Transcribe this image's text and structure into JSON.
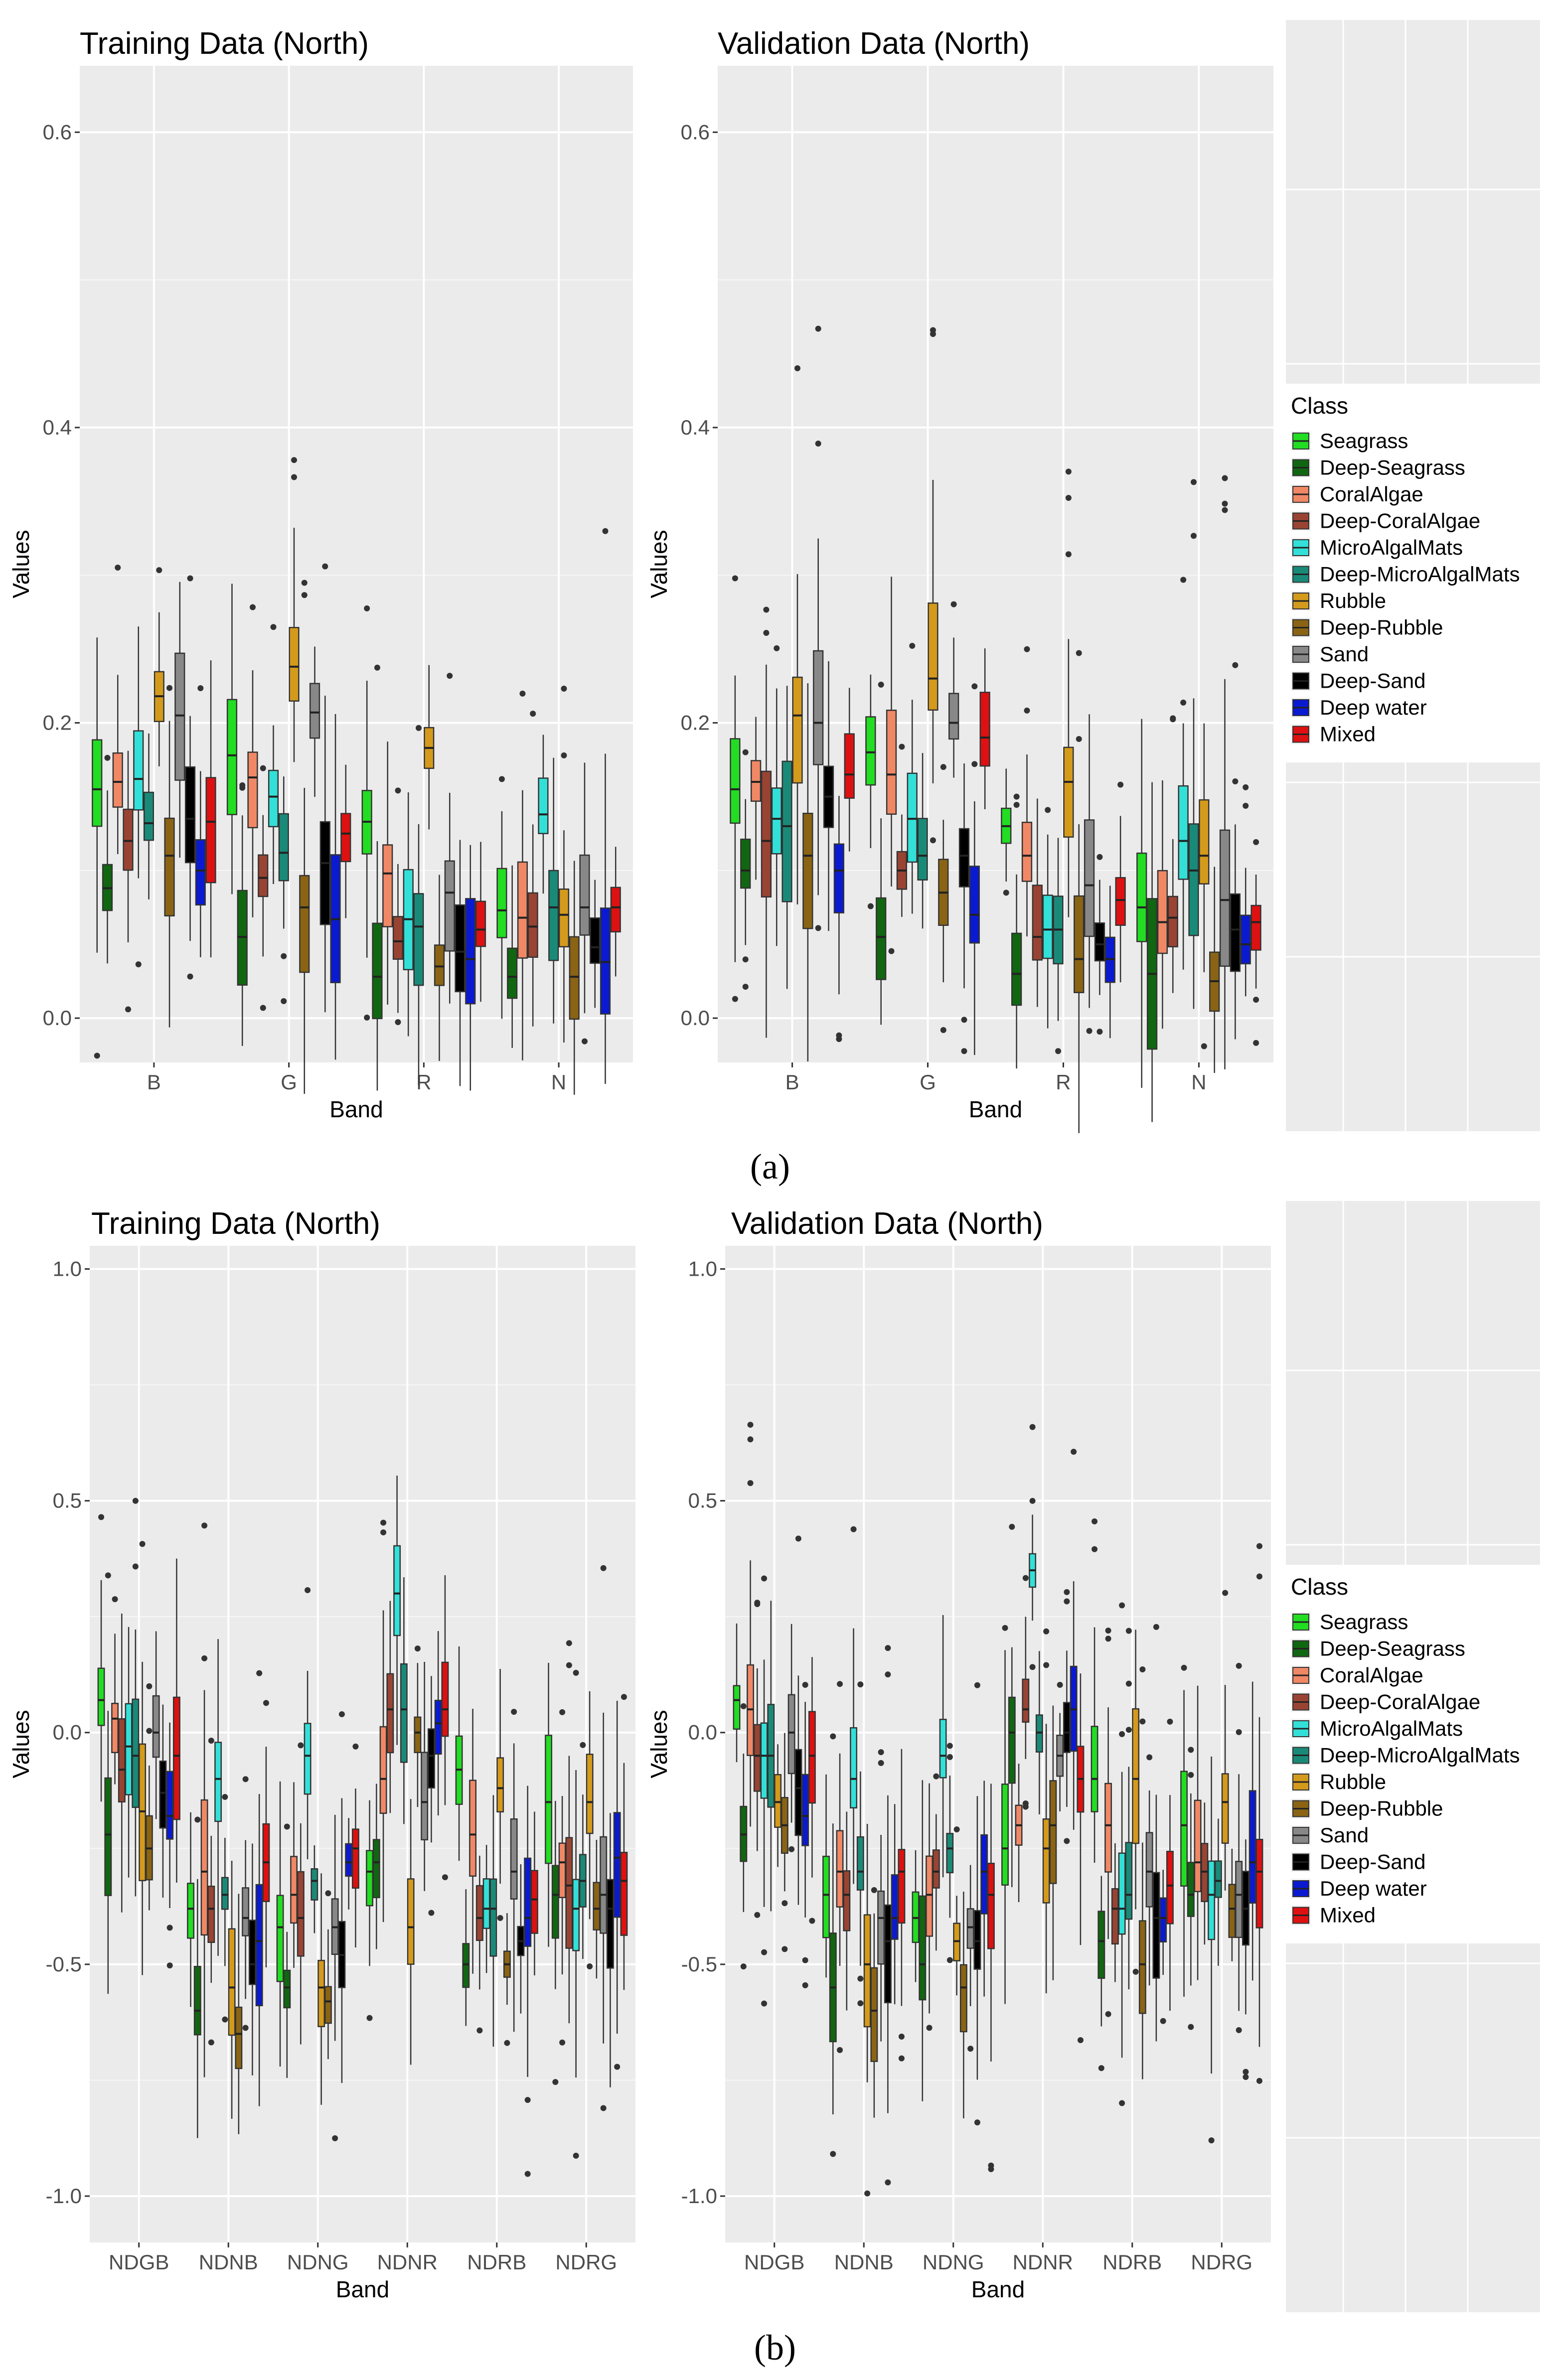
{
  "captions": [
    "(a)",
    "(b)"
  ],
  "legend": {
    "title": "Class",
    "classes": [
      {
        "name": "Seagrass",
        "color": "#22dd22"
      },
      {
        "name": "Deep-Seagrass",
        "color": "#116611"
      },
      {
        "name": "CoralAlgae",
        "color": "#f08866"
      },
      {
        "name": "Deep-CoralAlgae",
        "color": "#994433"
      },
      {
        "name": "MicroAlgalMats",
        "color": "#33e0d8"
      },
      {
        "name": "Deep-MicroAlgalMats",
        "color": "#1a8a78"
      },
      {
        "name": "Rubble",
        "color": "#d49a1c"
      },
      {
        "name": "Deep-Rubble",
        "color": "#8a6414"
      },
      {
        "name": "Sand",
        "color": "#888888"
      },
      {
        "name": "Deep-Sand",
        "color": "#000000"
      },
      {
        "name": "Deep water",
        "color": "#0a1ad0"
      },
      {
        "name": "Mixed",
        "color": "#dd1111"
      }
    ]
  },
  "chart_data": [
    {
      "type": "box",
      "title": "Training Data (North)",
      "xlabel": "Band",
      "ylabel": "Values",
      "categories": [
        "B",
        "G",
        "R",
        "N"
      ],
      "ylim": [
        -0.03,
        0.645
      ],
      "yticks": [
        0.0,
        0.2,
        0.4,
        0.6
      ],
      "ytick_labels": [
        "0.0",
        "0.2",
        "0.4",
        "0.6"
      ],
      "series_medians": {
        "Seagrass": [
          0.155,
          0.178,
          0.133,
          0.073
        ],
        "Deep-Seagrass": [
          0.088,
          0.055,
          0.028,
          0.028
        ],
        "CoralAlgae": [
          0.16,
          0.163,
          0.098,
          0.068
        ],
        "Deep-CoralAlgae": [
          0.12,
          0.095,
          0.052,
          0.062
        ],
        "MicroAlgalMats": [
          0.162,
          0.15,
          0.067,
          0.138
        ],
        "Deep-MicroAlgalMats": [
          0.132,
          0.112,
          0.062,
          0.075
        ],
        "Rubble": [
          0.218,
          0.238,
          0.183,
          0.07
        ],
        "Deep-Rubble": [
          0.11,
          0.075,
          0.035,
          0.028
        ],
        "Sand": [
          0.205,
          0.207,
          0.085,
          0.075
        ],
        "Deep-Sand": [
          0.135,
          0.105,
          0.045,
          0.048
        ],
        "Deep water": [
          0.1,
          0.067,
          0.04,
          0.038
        ],
        "Mixed": [
          0.133,
          0.125,
          0.06,
          0.075
        ]
      }
    },
    {
      "type": "box",
      "title": "Validation Data (North)",
      "xlabel": "Band",
      "ylabel": "Values",
      "categories": [
        "B",
        "G",
        "R",
        "N"
      ],
      "ylim": [
        -0.03,
        0.645
      ],
      "yticks": [
        0.0,
        0.2,
        0.4,
        0.6
      ],
      "ytick_labels": [
        "0.0",
        "0.2",
        "0.4",
        "0.6"
      ],
      "series_medians": {
        "Seagrass": [
          0.155,
          0.18,
          0.13,
          0.075
        ],
        "Deep-Seagrass": [
          0.1,
          0.055,
          0.03,
          0.03
        ],
        "CoralAlgae": [
          0.16,
          0.165,
          0.11,
          0.065
        ],
        "Deep-CoralAlgae": [
          0.12,
          0.1,
          0.055,
          0.068
        ],
        "MicroAlgalMats": [
          0.135,
          0.135,
          0.06,
          0.12
        ],
        "Deep-MicroAlgalMats": [
          0.13,
          0.11,
          0.06,
          0.1
        ],
        "Rubble": [
          0.205,
          0.23,
          0.16,
          0.11
        ],
        "Deep-Rubble": [
          0.11,
          0.085,
          0.04,
          0.025
        ],
        "Sand": [
          0.2,
          0.2,
          0.09,
          0.08
        ],
        "Deep-Sand": [
          0.15,
          0.11,
          0.05,
          0.06
        ],
        "Deep water": [
          0.1,
          0.07,
          0.04,
          0.05
        ],
        "Mixed": [
          0.165,
          0.19,
          0.08,
          0.065
        ]
      }
    },
    {
      "type": "box",
      "title": "Training Data (North)",
      "xlabel": "Band",
      "ylabel": "Values",
      "categories": [
        "NDGB",
        "NDNB",
        "NDNG",
        "NDNR",
        "NDRB",
        "NDRG"
      ],
      "ylim": [
        -1.1,
        1.05
      ],
      "yticks": [
        -1.0,
        -0.5,
        0.0,
        0.5,
        1.0
      ],
      "ytick_labels": [
        "-1.0",
        "-0.5",
        "0.0",
        "0.5",
        "1.0"
      ],
      "series_medians": {
        "Seagrass": [
          0.07,
          -0.38,
          -0.42,
          -0.3,
          -0.08,
          -0.15
        ],
        "Deep-Seagrass": [
          -0.22,
          -0.6,
          -0.55,
          -0.28,
          -0.5,
          -0.35
        ],
        "CoralAlgae": [
          0.03,
          -0.3,
          -0.35,
          -0.1,
          -0.22,
          -0.28
        ],
        "Deep-CoralAlgae": [
          -0.08,
          -0.38,
          -0.4,
          0.05,
          -0.4,
          -0.33
        ],
        "MicroAlgalMats": [
          -0.03,
          -0.1,
          -0.05,
          0.3,
          -0.38,
          -0.38
        ],
        "Deep-MicroAlgalMats": [
          -0.05,
          -0.35,
          -0.32,
          0.05,
          -0.38,
          -0.32
        ],
        "Rubble": [
          -0.17,
          -0.55,
          -0.55,
          -0.42,
          -0.12,
          -0.15
        ],
        "Deep-Rubble": [
          -0.25,
          -0.65,
          -0.58,
          0.0,
          -0.5,
          -0.38
        ],
        "Sand": [
          0.0,
          -0.4,
          -0.42,
          -0.15,
          -0.3,
          -0.35
        ],
        "Deep-Sand": [
          -0.13,
          -0.5,
          -0.48,
          -0.05,
          -0.45,
          -0.38
        ],
        "Deep water": [
          -0.18,
          -0.45,
          -0.28,
          0.02,
          -0.4,
          -0.27
        ],
        "Mixed": [
          -0.05,
          -0.28,
          -0.25,
          0.05,
          -0.36,
          -0.32
        ]
      }
    },
    {
      "type": "box",
      "title": "Validation Data (North)",
      "xlabel": "Band",
      "ylabel": "Values",
      "categories": [
        "NDGB",
        "NDNB",
        "NDNG",
        "NDNR",
        "NDRB",
        "NDRG"
      ],
      "ylim": [
        -1.1,
        1.05
      ],
      "yticks": [
        -1.0,
        -0.5,
        0.0,
        0.5,
        1.0
      ],
      "ytick_labels": [
        "-1.0",
        "-0.5",
        "0.0",
        "0.5",
        "1.0"
      ],
      "series_medians": {
        "Seagrass": [
          0.07,
          -0.35,
          -0.4,
          -0.25,
          -0.1,
          -0.2
        ],
        "Deep-Seagrass": [
          -0.22,
          -0.55,
          -0.5,
          0.0,
          -0.45,
          -0.35
        ],
        "CoralAlgae": [
          0.05,
          -0.3,
          -0.35,
          -0.2,
          -0.2,
          -0.28
        ],
        "Deep-CoralAlgae": [
          -0.05,
          -0.35,
          -0.3,
          0.05,
          -0.38,
          -0.3
        ],
        "MicroAlgalMats": [
          -0.05,
          -0.1,
          -0.05,
          0.35,
          -0.38,
          -0.35
        ],
        "Deep-MicroAlgalMats": [
          -0.05,
          -0.3,
          -0.25,
          0.0,
          -0.35,
          -0.32
        ],
        "Rubble": [
          -0.15,
          -0.5,
          -0.45,
          -0.25,
          -0.1,
          -0.15
        ],
        "Deep-Rubble": [
          -0.2,
          -0.6,
          -0.55,
          -0.2,
          -0.5,
          -0.38
        ],
        "Sand": [
          0.0,
          -0.4,
          -0.42,
          -0.05,
          -0.3,
          -0.35
        ],
        "Deep-Sand": [
          -0.12,
          -0.45,
          -0.45,
          0.0,
          -0.4,
          -0.38
        ],
        "Deep water": [
          -0.18,
          -0.4,
          -0.3,
          0.05,
          -0.4,
          -0.28
        ],
        "Mixed": [
          -0.05,
          -0.3,
          -0.35,
          -0.1,
          -0.33,
          -0.3
        ]
      }
    }
  ]
}
